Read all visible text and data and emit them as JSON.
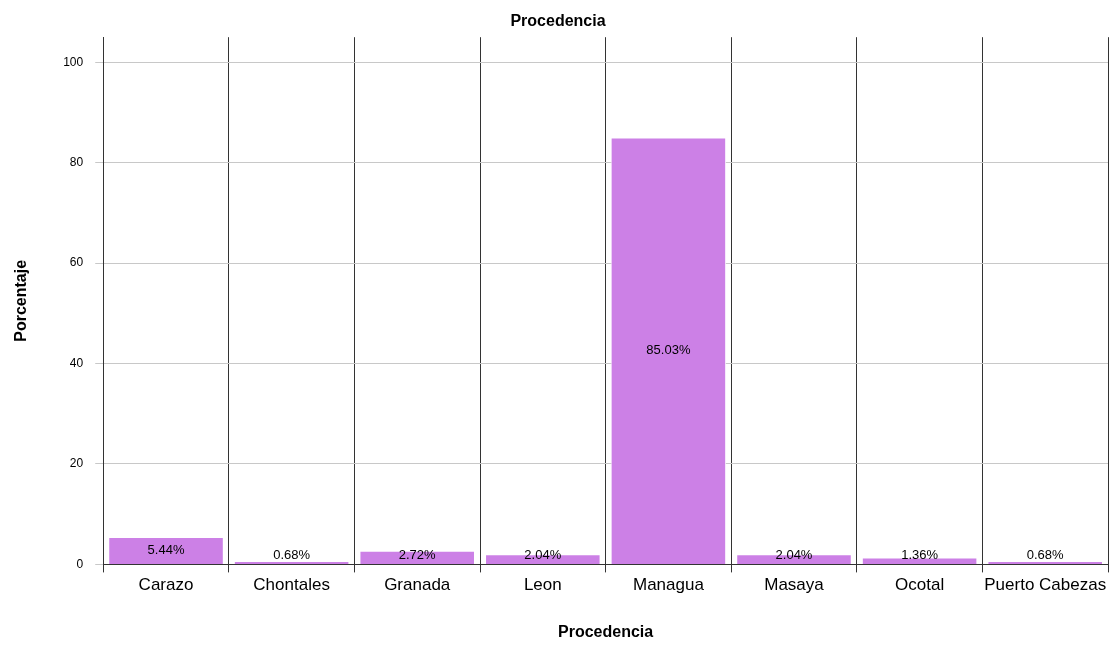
{
  "chart_data": {
    "type": "bar",
    "title": "Procedencia",
    "xlabel": "Procedencia",
    "ylabel": "Porcentaje",
    "categories": [
      "Carazo",
      "Chontales",
      "Granada",
      "Leon",
      "Managua",
      "Masaya",
      "Ocotal",
      "Puerto Cabezas"
    ],
    "values": [
      5.44,
      0.68,
      2.72,
      2.04,
      85.03,
      2.04,
      1.36,
      0.68
    ],
    "value_labels": [
      "5.44%",
      "0.68%",
      "2.72%",
      "2.04%",
      "85.03%",
      "2.04%",
      "1.36%",
      "0.68%"
    ],
    "color": "#cc80e6",
    "ylim": [
      0,
      105
    ],
    "yticks": [
      0,
      20,
      40,
      60,
      80,
      100
    ],
    "grid": true,
    "legend": false
  }
}
